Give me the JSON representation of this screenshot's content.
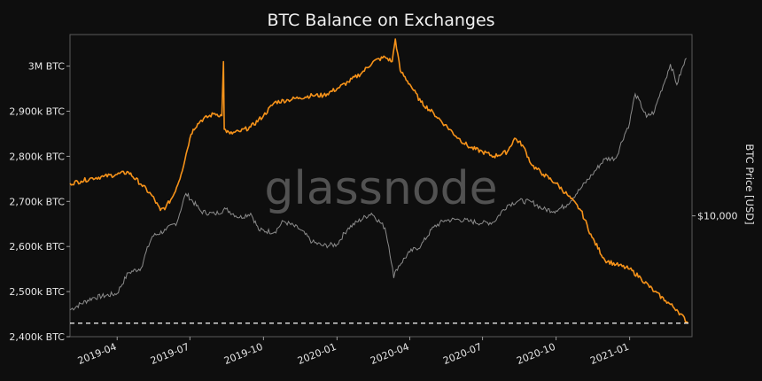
{
  "chart_data": {
    "type": "line",
    "title": "BTC Balance on Exchanges",
    "watermark": "glassnode",
    "y2label": "BTC Price [USD]",
    "y_ticks": [
      "2,400k BTC",
      "2,500k BTC",
      "2,600k BTC",
      "2,700k BTC",
      "2,800k BTC",
      "2,900k BTC",
      "3M BTC"
    ],
    "y_tick_values": [
      2400,
      2500,
      2600,
      2700,
      2800,
      2900,
      3000
    ],
    "y2_ticks": [
      "$10,000"
    ],
    "x_ticks": [
      "2019-04",
      "2019-07",
      "2019-10",
      "2020-01",
      "2020-04",
      "2020-07",
      "2020-10",
      "2021-01"
    ],
    "xlim": [
      "2019-02-01",
      "2021-03-20"
    ],
    "ylim": [
      2400,
      3070
    ],
    "colors": {
      "background": "#0e0e0e",
      "balance": "#f7931a",
      "price": "#8c8c8c",
      "reference_line": "#ffffff"
    },
    "reference_line": {
      "y": 2430,
      "style": "dashed"
    },
    "series": [
      {
        "unit": "BTC (thousands)",
        "x": [
          "2019-02-01",
          "2019-02-15",
          "2019-03-01",
          "2019-03-15",
          "2019-04-01",
          "2019-04-15",
          "2019-05-01",
          "2019-05-15",
          "2019-05-25",
          "2019-06-01",
          "2019-06-10",
          "2019-06-20",
          "2019-07-01",
          "2019-07-05",
          "2019-07-15",
          "2019-08-01",
          "2019-08-10",
          "2019-08-12",
          "2019-08-13",
          "2019-08-20",
          "2019-09-01",
          "2019-09-15",
          "2019-10-01",
          "2019-10-15",
          "2019-11-01",
          "2019-11-15",
          "2019-12-01",
          "2019-12-15",
          "2020-01-01",
          "2020-01-15",
          "2020-02-01",
          "2020-02-15",
          "2020-03-01",
          "2020-03-10",
          "2020-03-14",
          "2020-03-20",
          "2020-04-01",
          "2020-04-15",
          "2020-05-01",
          "2020-05-15",
          "2020-06-01",
          "2020-06-15",
          "2020-07-01",
          "2020-07-15",
          "2020-08-01",
          "2020-08-10",
          "2020-08-20",
          "2020-09-01",
          "2020-09-15",
          "2020-10-01",
          "2020-10-15",
          "2020-11-01",
          "2020-11-15",
          "2020-12-01",
          "2020-12-15",
          "2021-01-01",
          "2021-01-15",
          "2021-02-01",
          "2021-02-15",
          "2021-03-01",
          "2021-03-15"
        ],
        "values": [
          2740,
          2745,
          2752,
          2755,
          2760,
          2765,
          2738,
          2712,
          2680,
          2688,
          2712,
          2760,
          2840,
          2860,
          2880,
          2895,
          2890,
          3010,
          2860,
          2850,
          2855,
          2865,
          2890,
          2920,
          2925,
          2930,
          2935,
          2935,
          2950,
          2965,
          2985,
          3010,
          3020,
          3010,
          3060,
          2990,
          2960,
          2920,
          2895,
          2870,
          2840,
          2820,
          2810,
          2800,
          2810,
          2840,
          2825,
          2780,
          2760,
          2740,
          2715,
          2680,
          2620,
          2570,
          2560,
          2550,
          2530,
          2500,
          2480,
          2460,
          2430
        ]
      },
      {
        "unit": "USD",
        "x": [
          "2019-02-01",
          "2019-03-01",
          "2019-04-01",
          "2019-04-15",
          "2019-05-01",
          "2019-05-15",
          "2019-06-01",
          "2019-06-15",
          "2019-06-26",
          "2019-07-15",
          "2019-08-01",
          "2019-08-15",
          "2019-09-01",
          "2019-09-15",
          "2019-09-25",
          "2019-10-15",
          "2019-10-26",
          "2019-11-15",
          "2019-12-01",
          "2019-12-15",
          "2020-01-01",
          "2020-01-15",
          "2020-02-13",
          "2020-03-01",
          "2020-03-12",
          "2020-03-15",
          "2020-04-01",
          "2020-04-15",
          "2020-05-01",
          "2020-05-15",
          "2020-06-01",
          "2020-06-15",
          "2020-07-01",
          "2020-07-15",
          "2020-08-01",
          "2020-08-15",
          "2020-09-01",
          "2020-09-15",
          "2020-10-01",
          "2020-10-15",
          "2020-11-01",
          "2020-11-15",
          "2020-12-01",
          "2020-12-15",
          "2021-01-01",
          "2021-01-08",
          "2021-01-22",
          "2021-02-01",
          "2021-02-15",
          "2021-02-21",
          "2021-03-01",
          "2021-03-13"
        ],
        "values": [
          3400,
          3900,
          4100,
          5200,
          5500,
          7900,
          8500,
          9300,
          12900,
          10500,
          10200,
          10800,
          9800,
          10300,
          8500,
          8300,
          9400,
          8600,
          7400,
          7100,
          7200,
          8700,
          10300,
          8700,
          4900,
          5400,
          6600,
          7100,
          8800,
          9500,
          9600,
          9400,
          9200,
          9300,
          11300,
          11900,
          11700,
          10800,
          10600,
          11400,
          13700,
          16000,
          19200,
          19400,
          29000,
          40500,
          31000,
          33000,
          48000,
          57000,
          45000,
          61000
        ]
      }
    ]
  }
}
